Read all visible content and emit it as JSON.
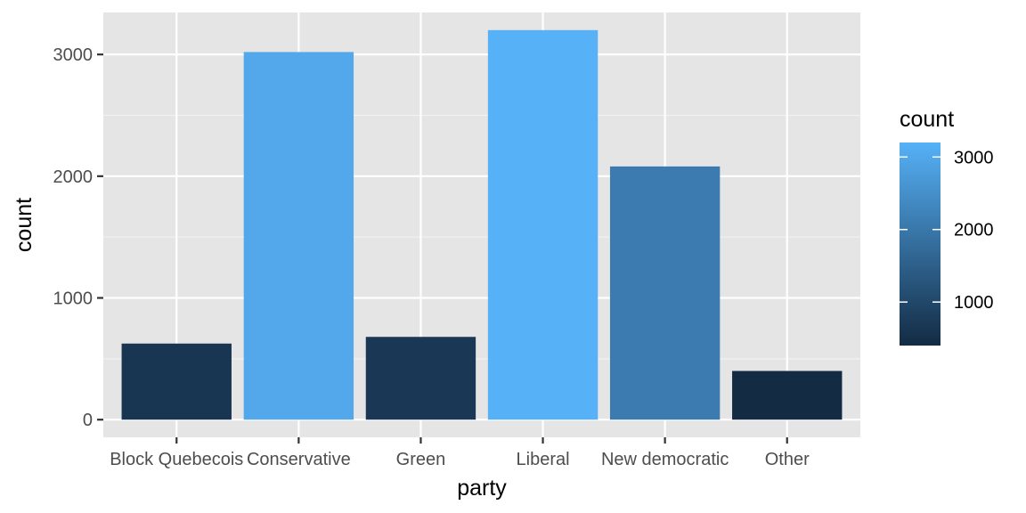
{
  "chart_data": {
    "type": "bar",
    "categories": [
      "Block Quebecois",
      "Conservative",
      "Green",
      "Liberal",
      "New democratic",
      "Other"
    ],
    "values": [
      625,
      3020,
      680,
      3200,
      2080,
      400
    ],
    "xlabel": "party",
    "ylabel": "count",
    "ylim": [
      -145,
      3345
    ],
    "y_ticks": [
      0,
      1000,
      2000,
      3000
    ],
    "y_tick_labels": [
      "0",
      "1000",
      "2000",
      "3000"
    ],
    "grid": true,
    "panel_background": "#e5e5e5",
    "legend": {
      "title": "count",
      "position": "right",
      "range": [
        400,
        3200
      ],
      "ticks": [
        1000,
        2000,
        3000
      ],
      "tick_labels": [
        "1000",
        "2000",
        "3000"
      ],
      "low_color": "#132b43",
      "high_color": "#56b1f7"
    }
  }
}
